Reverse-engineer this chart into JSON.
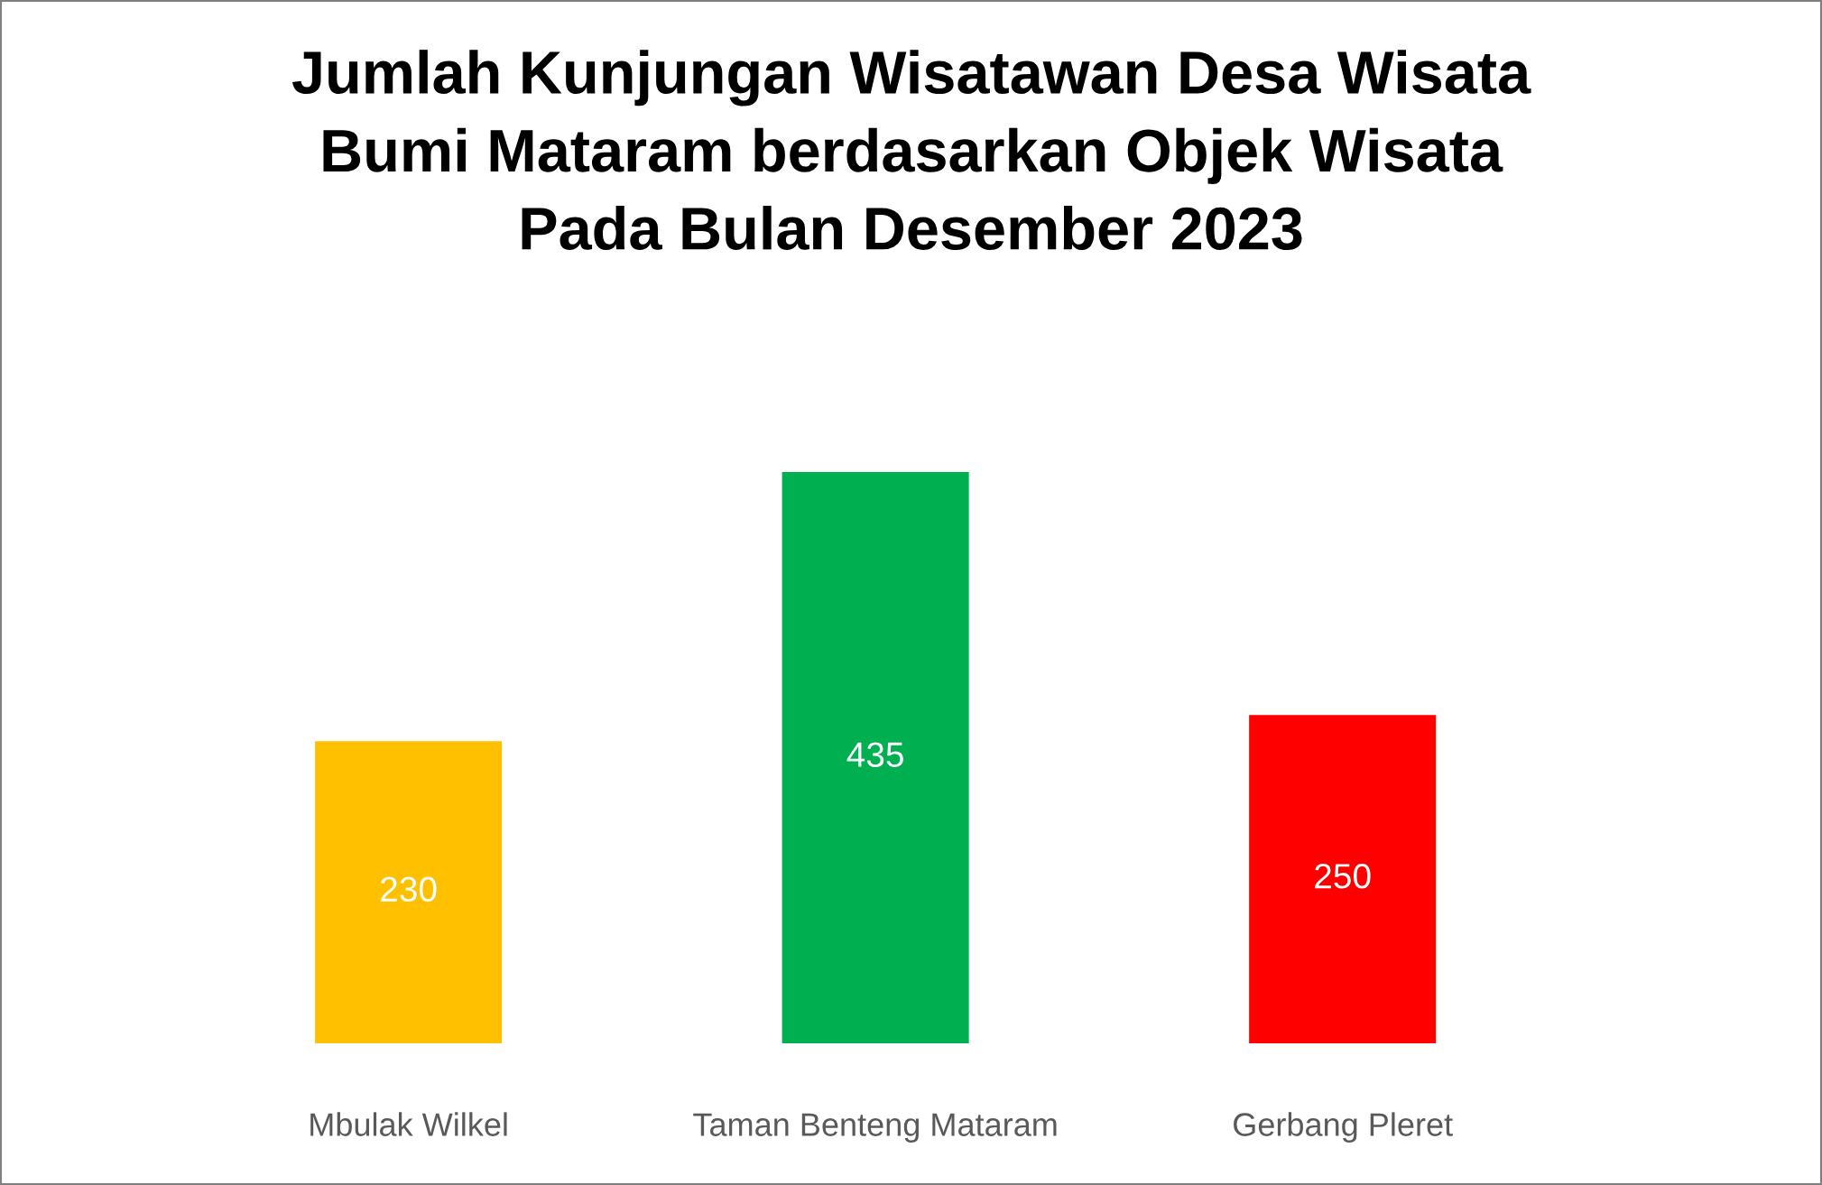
{
  "chart_data": {
    "type": "bar",
    "title": "Jumlah Kunjungan Wisatawan Desa Wisata\nBumi Mataram berdasarkan Objek Wisata\nPada Bulan Desember 2023",
    "categories": [
      "Mbulak Wilkel",
      "Taman Benteng Mataram",
      "Gerbang Pleret"
    ],
    "values": [
      230,
      435,
      250
    ],
    "colors": [
      "#ffc000",
      "#00b050",
      "#ff0000"
    ],
    "data_labels": true
  }
}
